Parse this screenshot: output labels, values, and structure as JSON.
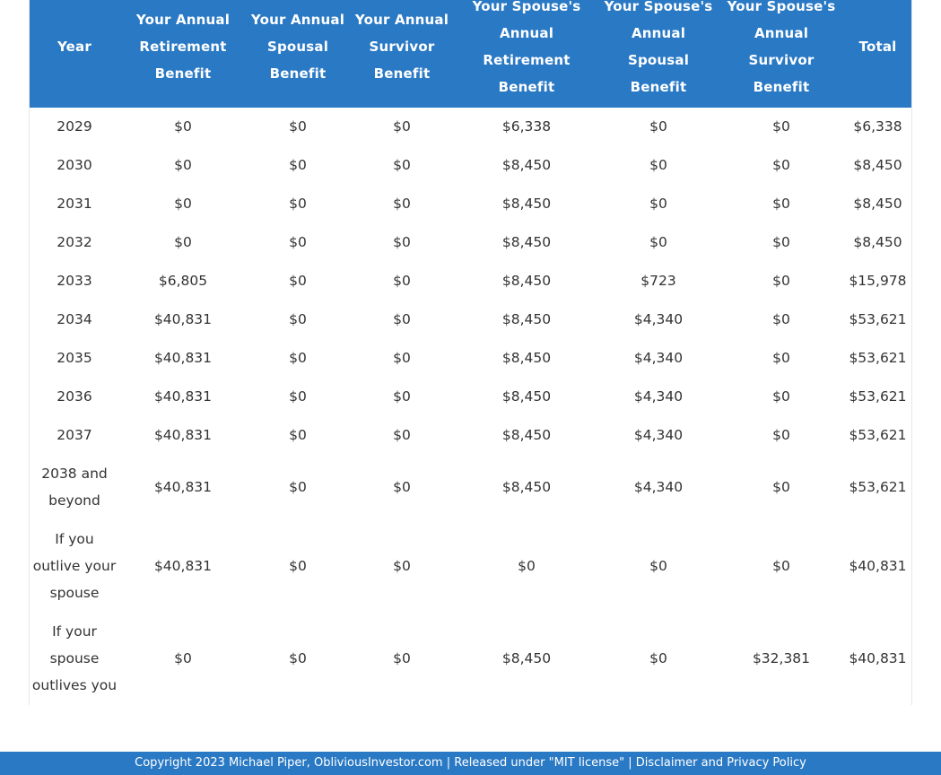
{
  "table": {
    "headers": [
      "Year",
      "Your Annual Retirement Benefit",
      "Your Annual Spousal Benefit",
      "Your Annual Survivor Benefit",
      "Your Spouse's Annual Retirement Benefit",
      "Your Spouse's Annual Spousal Benefit",
      "Your Spouse's Annual Survivor Benefit",
      "Total"
    ],
    "rows": [
      [
        "2029",
        "$0",
        "$0",
        "$0",
        "$6,338",
        "$0",
        "$0",
        "$6,338"
      ],
      [
        "2030",
        "$0",
        "$0",
        "$0",
        "$8,450",
        "$0",
        "$0",
        "$8,450"
      ],
      [
        "2031",
        "$0",
        "$0",
        "$0",
        "$8,450",
        "$0",
        "$0",
        "$8,450"
      ],
      [
        "2032",
        "$0",
        "$0",
        "$0",
        "$8,450",
        "$0",
        "$0",
        "$8,450"
      ],
      [
        "2033",
        "$6,805",
        "$0",
        "$0",
        "$8,450",
        "$723",
        "$0",
        "$15,978"
      ],
      [
        "2034",
        "$40,831",
        "$0",
        "$0",
        "$8,450",
        "$4,340",
        "$0",
        "$53,621"
      ],
      [
        "2035",
        "$40,831",
        "$0",
        "$0",
        "$8,450",
        "$4,340",
        "$0",
        "$53,621"
      ],
      [
        "2036",
        "$40,831",
        "$0",
        "$0",
        "$8,450",
        "$4,340",
        "$0",
        "$53,621"
      ],
      [
        "2037",
        "$40,831",
        "$0",
        "$0",
        "$8,450",
        "$4,340",
        "$0",
        "$53,621"
      ],
      [
        "2038 and beyond",
        "$40,831",
        "$0",
        "$0",
        "$8,450",
        "$4,340",
        "$0",
        "$53,621"
      ],
      [
        "If you outlive your spouse",
        "$40,831",
        "$0",
        "$0",
        "$0",
        "$0",
        "$0",
        "$40,831"
      ],
      [
        "If your spouse outlives you",
        "$0",
        "$0",
        "$0",
        "$8,450",
        "$0",
        "$32,381",
        "$40,831"
      ]
    ]
  },
  "footer": {
    "copyright": "Copyright 2023 Michael Piper, ObliviousInvestor.com",
    "separator": " | ",
    "license_link": "Released under \"MIT license\"",
    "disclaimer_link": "Disclaimer and Privacy Policy"
  }
}
